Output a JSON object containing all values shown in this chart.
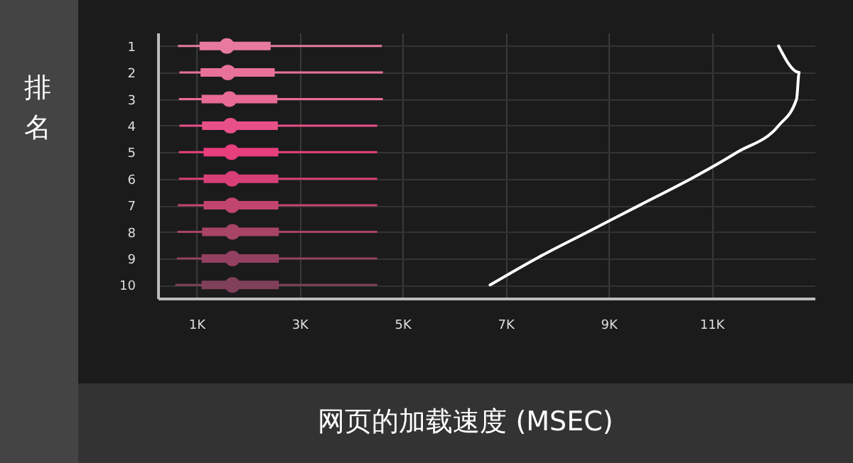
{
  "chart_data": {
    "type": "box",
    "orientation": "horizontal",
    "xlabel": "网页的加载速度 (MSEC)",
    "ylabel": "排名",
    "categories": [
      "1",
      "2",
      "3",
      "4",
      "5",
      "6",
      "7",
      "8",
      "9",
      "10"
    ],
    "colors": [
      "#e8799f",
      "#e8719a",
      "#e86a95",
      "#e8508a",
      "#e83f7c",
      "#d93f77",
      "#c2456f",
      "#a84467",
      "#934061",
      "#80405a"
    ],
    "boxes": [
      {
        "low": 640,
        "q1": 1060,
        "median": 1590,
        "q3": 2440,
        "high": 4600
      },
      {
        "low": 670,
        "q1": 1080,
        "median": 1610,
        "q3": 2520,
        "high": 4620
      },
      {
        "low": 660,
        "q1": 1100,
        "median": 1640,
        "q3": 2570,
        "high": 4620
      },
      {
        "low": 670,
        "q1": 1110,
        "median": 1660,
        "q3": 2580,
        "high": 4510
      },
      {
        "low": 660,
        "q1": 1140,
        "median": 1680,
        "q3": 2590,
        "high": 4510
      },
      {
        "low": 660,
        "q1": 1140,
        "median": 1690,
        "q3": 2590,
        "high": 4510
      },
      {
        "low": 640,
        "q1": 1140,
        "median": 1690,
        "q3": 2590,
        "high": 4510
      },
      {
        "low": 630,
        "q1": 1110,
        "median": 1700,
        "q3": 2600,
        "high": 4510
      },
      {
        "low": 620,
        "q1": 1100,
        "median": 1700,
        "q3": 2600,
        "high": 4510
      },
      {
        "low": 590,
        "q1": 1100,
        "median": 1700,
        "q3": 2600,
        "high": 4510
      }
    ],
    "series": [
      {
        "type": "line",
        "color": "#ffffff",
        "values": [
          12300,
          12700,
          12650,
          12300,
          11500,
          10600,
          9600,
          8600,
          7600,
          6700
        ]
      }
    ],
    "xlim": [
      250,
      13000
    ],
    "xticks": [
      {
        "value": 1000,
        "label": "1K"
      },
      {
        "value": 3000,
        "label": "3K"
      },
      {
        "value": 5000,
        "label": "5K"
      },
      {
        "value": 7000,
        "label": "7K"
      },
      {
        "value": 9000,
        "label": "9K"
      },
      {
        "value": 11000,
        "label": "11K"
      }
    ],
    "grid": true,
    "legend": false
  }
}
